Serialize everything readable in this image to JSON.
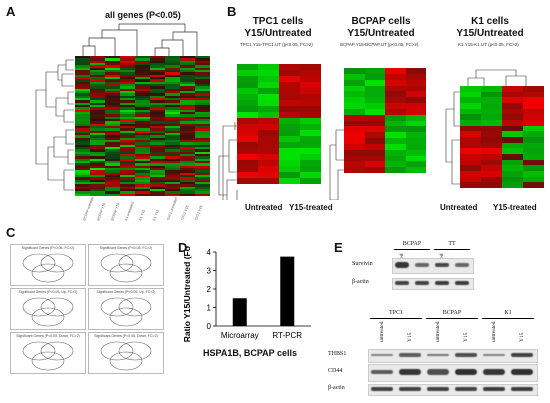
{
  "panels": {
    "A": {
      "letter": "A",
      "title": "all genes (P<0.05)"
    },
    "B": {
      "letter": "B",
      "maps": [
        {
          "title1": "TPC1  cells",
          "title2": "Y15/Untreated",
          "caption": "TPC1.Y15-TPC1.UT (p<0.05, FC>2)"
        },
        {
          "title1": "BCPAP  cells",
          "title2": "Y15/Untreated",
          "caption": "BCPAP.Y15-BCPAP.UT (p<0.05, FC>2)"
        },
        {
          "title1": "K1  cells",
          "title2": "Y15/Untreated",
          "caption": "K1.Y15-K1.UT (p<0.05, FC>2)"
        }
      ],
      "xlabels": [
        "Untreated",
        "Y15-treated",
        "Untreated",
        "Y15-treated"
      ]
    },
    "C": {
      "letter": "C",
      "boxes": [
        {
          "title": "Significant Genes (P<0.05, FC>2)"
        },
        {
          "title": "Significant Genes (P<0.05, FC>2)"
        },
        {
          "title": "Significant Genes (P<0.05, Up, FC>2)"
        },
        {
          "title": "Significant Genes (P<0.05, Up, FC>2)"
        },
        {
          "title": "Significant Genes (P<0.05, Down, FC>2)"
        },
        {
          "title": "Significant Genes (P<0.05, Down, FC>2)"
        }
      ]
    },
    "D": {
      "letter": "D",
      "subtitle": "HSPA1B, BCPAP cells",
      "chart_data": {
        "type": "bar",
        "categories": [
          "Microarray",
          "RT-PCR"
        ],
        "values": [
          1.5,
          3.75
        ],
        "ylabel": "Ratio Y15/Untreated (Fold)",
        "ylim": [
          0,
          4
        ],
        "yticks": [
          "0",
          "1",
          "2",
          "3",
          "4"
        ],
        "color": "#000000"
      }
    },
    "E": {
      "letter": "E",
      "top": {
        "groups": [
          "BCPAP",
          "TT"
        ],
        "lanes": [
          "untreated",
          "Y15",
          "untreated",
          "Y15"
        ],
        "rows": [
          "Survivin",
          "β-actin"
        ]
      },
      "bottom": {
        "groups": [
          "TPC1",
          "BCPAP",
          "K1"
        ],
        "lanes": [
          "untreated",
          "Y15",
          "untreated",
          "Y15",
          "untreated",
          "Y15"
        ],
        "rows": [
          "THBS1",
          "CD44",
          "β-actin"
        ]
      }
    }
  }
}
